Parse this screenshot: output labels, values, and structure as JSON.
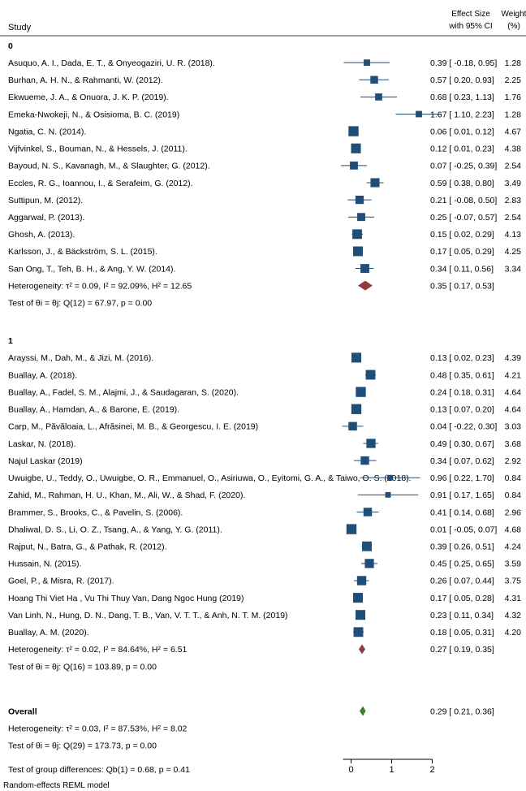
{
  "chart_data": {
    "type": "forest",
    "header": {
      "study": "Study",
      "effect_size_line1": "Effect Size",
      "effect_size_line2": "with 95% CI",
      "weight_line1": "Weight",
      "weight_line2": "(%)"
    },
    "xaxis": {
      "ticks": [
        0,
        1,
        2
      ],
      "range": [
        -0.2,
        2.0
      ]
    },
    "groups": [
      {
        "label": "0",
        "studies": [
          {
            "name": "Asuquo, A. I., Dada, E. T., & Onyeogaziri, U. R. (2018).",
            "es": 0.39,
            "lo": -0.18,
            "hi": 0.95,
            "weight": 1.28,
            "ci_text": "0.39 [ -0.18, 0.95]",
            "w_text": "1.28"
          },
          {
            "name": "Burhan, A. H. N., & Rahmanti, W. (2012).",
            "es": 0.57,
            "lo": 0.2,
            "hi": 0.93,
            "weight": 2.25,
            "ci_text": "0.57 [  0.20, 0.93]",
            "w_text": "2.25"
          },
          {
            "name": "Ekwueme, J. A., & Onuora, J. K. P. (2019).",
            "es": 0.68,
            "lo": 0.23,
            "hi": 1.13,
            "weight": 1.76,
            "ci_text": "0.68 [  0.23, 1.13]",
            "w_text": "1.76"
          },
          {
            "name": "Emeka-Nwokeji, N., & Osisioma, B. C. (2019)",
            "es": 1.67,
            "lo": 1.1,
            "hi": 2.23,
            "weight": 1.28,
            "ci_text": "1.67 [  1.10, 2.23]",
            "w_text": "1.28"
          },
          {
            "name": "Ngatia, C. N. (2014).",
            "es": 0.06,
            "lo": 0.01,
            "hi": 0.12,
            "weight": 4.67,
            "ci_text": "0.06 [  0.01, 0.12]",
            "w_text": "4.67"
          },
          {
            "name": "Vijfvinkel, S., Bouman, N., & Hessels, J. (2011).",
            "es": 0.12,
            "lo": 0.01,
            "hi": 0.23,
            "weight": 4.38,
            "ci_text": "0.12 [  0.01, 0.23]",
            "w_text": "4.38"
          },
          {
            "name": "Bayoud, N. S., Kavanagh, M., & Slaughter, G. (2012).",
            "es": 0.07,
            "lo": -0.25,
            "hi": 0.39,
            "weight": 2.54,
            "ci_text": "0.07 [ -0.25, 0.39]",
            "w_text": "2.54"
          },
          {
            "name": "Eccles, R. G., Ioannou, I., & Serafeim, G. (2012).",
            "es": 0.59,
            "lo": 0.38,
            "hi": 0.8,
            "weight": 3.49,
            "ci_text": "0.59 [  0.38, 0.80]",
            "w_text": "3.49"
          },
          {
            "name": "Suttipun, M. (2012).",
            "es": 0.21,
            "lo": -0.08,
            "hi": 0.5,
            "weight": 2.83,
            "ci_text": "0.21 [ -0.08, 0.50]",
            "w_text": "2.83"
          },
          {
            "name": "Aggarwal, P. (2013).",
            "es": 0.25,
            "lo": -0.07,
            "hi": 0.57,
            "weight": 2.54,
            "ci_text": "0.25 [ -0.07, 0.57]",
            "w_text": "2.54"
          },
          {
            "name": "Ghosh, A. (2013).",
            "es": 0.15,
            "lo": 0.02,
            "hi": 0.29,
            "weight": 4.13,
            "ci_text": "0.15 [  0.02, 0.29]",
            "w_text": "4.13"
          },
          {
            "name": "Karlsson, J., & Bäckström, S. L. (2015).",
            "es": 0.17,
            "lo": 0.05,
            "hi": 0.29,
            "weight": 4.25,
            "ci_text": "0.17 [  0.05, 0.29]",
            "w_text": "4.25"
          },
          {
            "name": "San Ong, T., Teh, B. H., & Ang, Y. W. (2014).",
            "es": 0.34,
            "lo": 0.11,
            "hi": 0.56,
            "weight": 3.34,
            "ci_text": "0.34 [  0.11, 0.56]",
            "w_text": "3.34"
          }
        ],
        "pooled": {
          "es": 0.35,
          "lo": 0.17,
          "hi": 0.53,
          "color": "#903c3c",
          "ci_text": "0.35 [  0.17, 0.53]",
          "het_text": "Heterogeneity: τ² = 0.09, I² = 92.09%, H² = 12.65",
          "test_text": "Test of θi = θj: Q(12) = 67.97, p = 0.00"
        }
      },
      {
        "label": "1",
        "studies": [
          {
            "name": "Arayssi, M., Dah, M., & Jizi, M. (2016).",
            "es": 0.13,
            "lo": 0.02,
            "hi": 0.23,
            "weight": 4.39,
            "ci_text": "0.13 [  0.02, 0.23]",
            "w_text": "4.39"
          },
          {
            "name": "Buallay, A. (2018).",
            "es": 0.48,
            "lo": 0.35,
            "hi": 0.61,
            "weight": 4.21,
            "ci_text": "0.48 [  0.35, 0.61]",
            "w_text": "4.21"
          },
          {
            "name": "Buallay, A., Fadel, S. M., Alajmi, J., & Saudagaran, S. (2020).",
            "es": 0.24,
            "lo": 0.18,
            "hi": 0.31,
            "weight": 4.64,
            "ci_text": "0.24 [  0.18, 0.31]",
            "w_text": "4.64"
          },
          {
            "name": "Buallay, A., Hamdan, A., & Barone, E. (2019).",
            "es": 0.13,
            "lo": 0.07,
            "hi": 0.2,
            "weight": 4.64,
            "ci_text": "0.13 [  0.07, 0.20]",
            "w_text": "4.64"
          },
          {
            "name": "Carp, M., Păvăloaia, L., Afrăsinei, M. B., & Georgescu, I. E. (2019)",
            "es": 0.04,
            "lo": -0.22,
            "hi": 0.3,
            "weight": 3.03,
            "ci_text": "0.04 [ -0.22, 0.30]",
            "w_text": "3.03"
          },
          {
            "name": "Laskar, N. (2018).",
            "es": 0.49,
            "lo": 0.3,
            "hi": 0.67,
            "weight": 3.68,
            "ci_text": "0.49 [  0.30, 0.67]",
            "w_text": "3.68"
          },
          {
            "name": "Najul Laskar (2019)",
            "es": 0.34,
            "lo": 0.07,
            "hi": 0.62,
            "weight": 2.92,
            "ci_text": "0.34 [  0.07, 0.62]",
            "w_text": "2.92"
          },
          {
            "name": "Uwuigbe, U., Teddy, O., Uwuigbe, O. R., Emmanuel, O., Asiriuwa, O., Eyitomi, G. A., & Taiwo, O. S. (2018).",
            "es": 0.96,
            "lo": 0.22,
            "hi": 1.7,
            "weight": 0.84,
            "ci_text": "0.96 [  0.22, 1.70]",
            "w_text": "0.84"
          },
          {
            "name": "Zahid, M., Rahman, H. U., Khan, M., Ali, W., & Shad, F. (2020).",
            "es": 0.91,
            "lo": 0.17,
            "hi": 1.65,
            "weight": 0.84,
            "ci_text": "0.91 [  0.17, 1.65]",
            "w_text": "0.84"
          },
          {
            "name": "Brammer, S., Brooks, C., & Pavelin, S. (2006).",
            "es": 0.41,
            "lo": 0.14,
            "hi": 0.68,
            "weight": 2.96,
            "ci_text": "0.41 [  0.14, 0.68]",
            "w_text": "2.96"
          },
          {
            "name": "Dhaliwal, D. S., Li, O. Z., Tsang, A., & Yang, Y. G. (2011).",
            "es": 0.01,
            "lo": -0.05,
            "hi": 0.07,
            "weight": 4.68,
            "ci_text": "0.01 [ -0.05, 0.07]",
            "w_text": "4.68"
          },
          {
            "name": "Rajput, N., Batra, G., & Pathak, R. (2012).",
            "es": 0.39,
            "lo": 0.26,
            "hi": 0.51,
            "weight": 4.24,
            "ci_text": "0.39 [  0.26, 0.51]",
            "w_text": "4.24"
          },
          {
            "name": "Hussain, N. (2015).",
            "es": 0.45,
            "lo": 0.25,
            "hi": 0.65,
            "weight": 3.59,
            "ci_text": "0.45 [  0.25, 0.65]",
            "w_text": "3.59"
          },
          {
            "name": "Goel, P., & Misra, R. (2017).",
            "es": 0.26,
            "lo": 0.07,
            "hi": 0.44,
            "weight": 3.75,
            "ci_text": "0.26 [  0.07, 0.44]",
            "w_text": "3.75"
          },
          {
            "name": "Hoang Thi Viet Ha , Vu Thi Thuy Van, Dang Ngoc Hung (2019)",
            "es": 0.17,
            "lo": 0.05,
            "hi": 0.28,
            "weight": 4.31,
            "ci_text": "0.17 [  0.05, 0.28]",
            "w_text": "4.31"
          },
          {
            "name": "Van Linh, N., Hung, D. N., Dang, T. B., Van, V. T. T., & Anh, N. T. M. (2019)",
            "es": 0.23,
            "lo": 0.11,
            "hi": 0.34,
            "weight": 4.32,
            "ci_text": "0.23 [  0.11, 0.34]",
            "w_text": "4.32"
          },
          {
            "name": "Buallay, A. M. (2020).",
            "es": 0.18,
            "lo": 0.05,
            "hi": 0.31,
            "weight": 4.2,
            "ci_text": "0.18 [  0.05, 0.31]",
            "w_text": "4.20"
          }
        ],
        "pooled": {
          "es": 0.27,
          "lo": 0.19,
          "hi": 0.35,
          "color": "#903c3c",
          "ci_text": "0.27 [  0.19, 0.35]",
          "het_text": "Heterogeneity: τ² = 0.02, I² = 84.64%, H² = 6.51",
          "test_text": "Test of θi = θj: Q(16) = 103.89, p = 0.00"
        }
      }
    ],
    "overall": {
      "label": "Overall",
      "es": 0.29,
      "lo": 0.21,
      "hi": 0.36,
      "color": "#3d7d2c",
      "ci_text": "0.29 [  0.21, 0.36]",
      "het_text": "Heterogeneity: τ² = 0.03, I² = 87.53%, H² = 8.02",
      "test_text": "Test of θi = θj: Q(29) = 173.73, p = 0.00"
    },
    "group_diff_text": "Test of group differences: Qb(1) = 0.68, p = 0.41",
    "footnote": "Random-effects REML model",
    "colors": {
      "marker": "#1f4e79",
      "ci_line": "#1f4e79"
    }
  }
}
